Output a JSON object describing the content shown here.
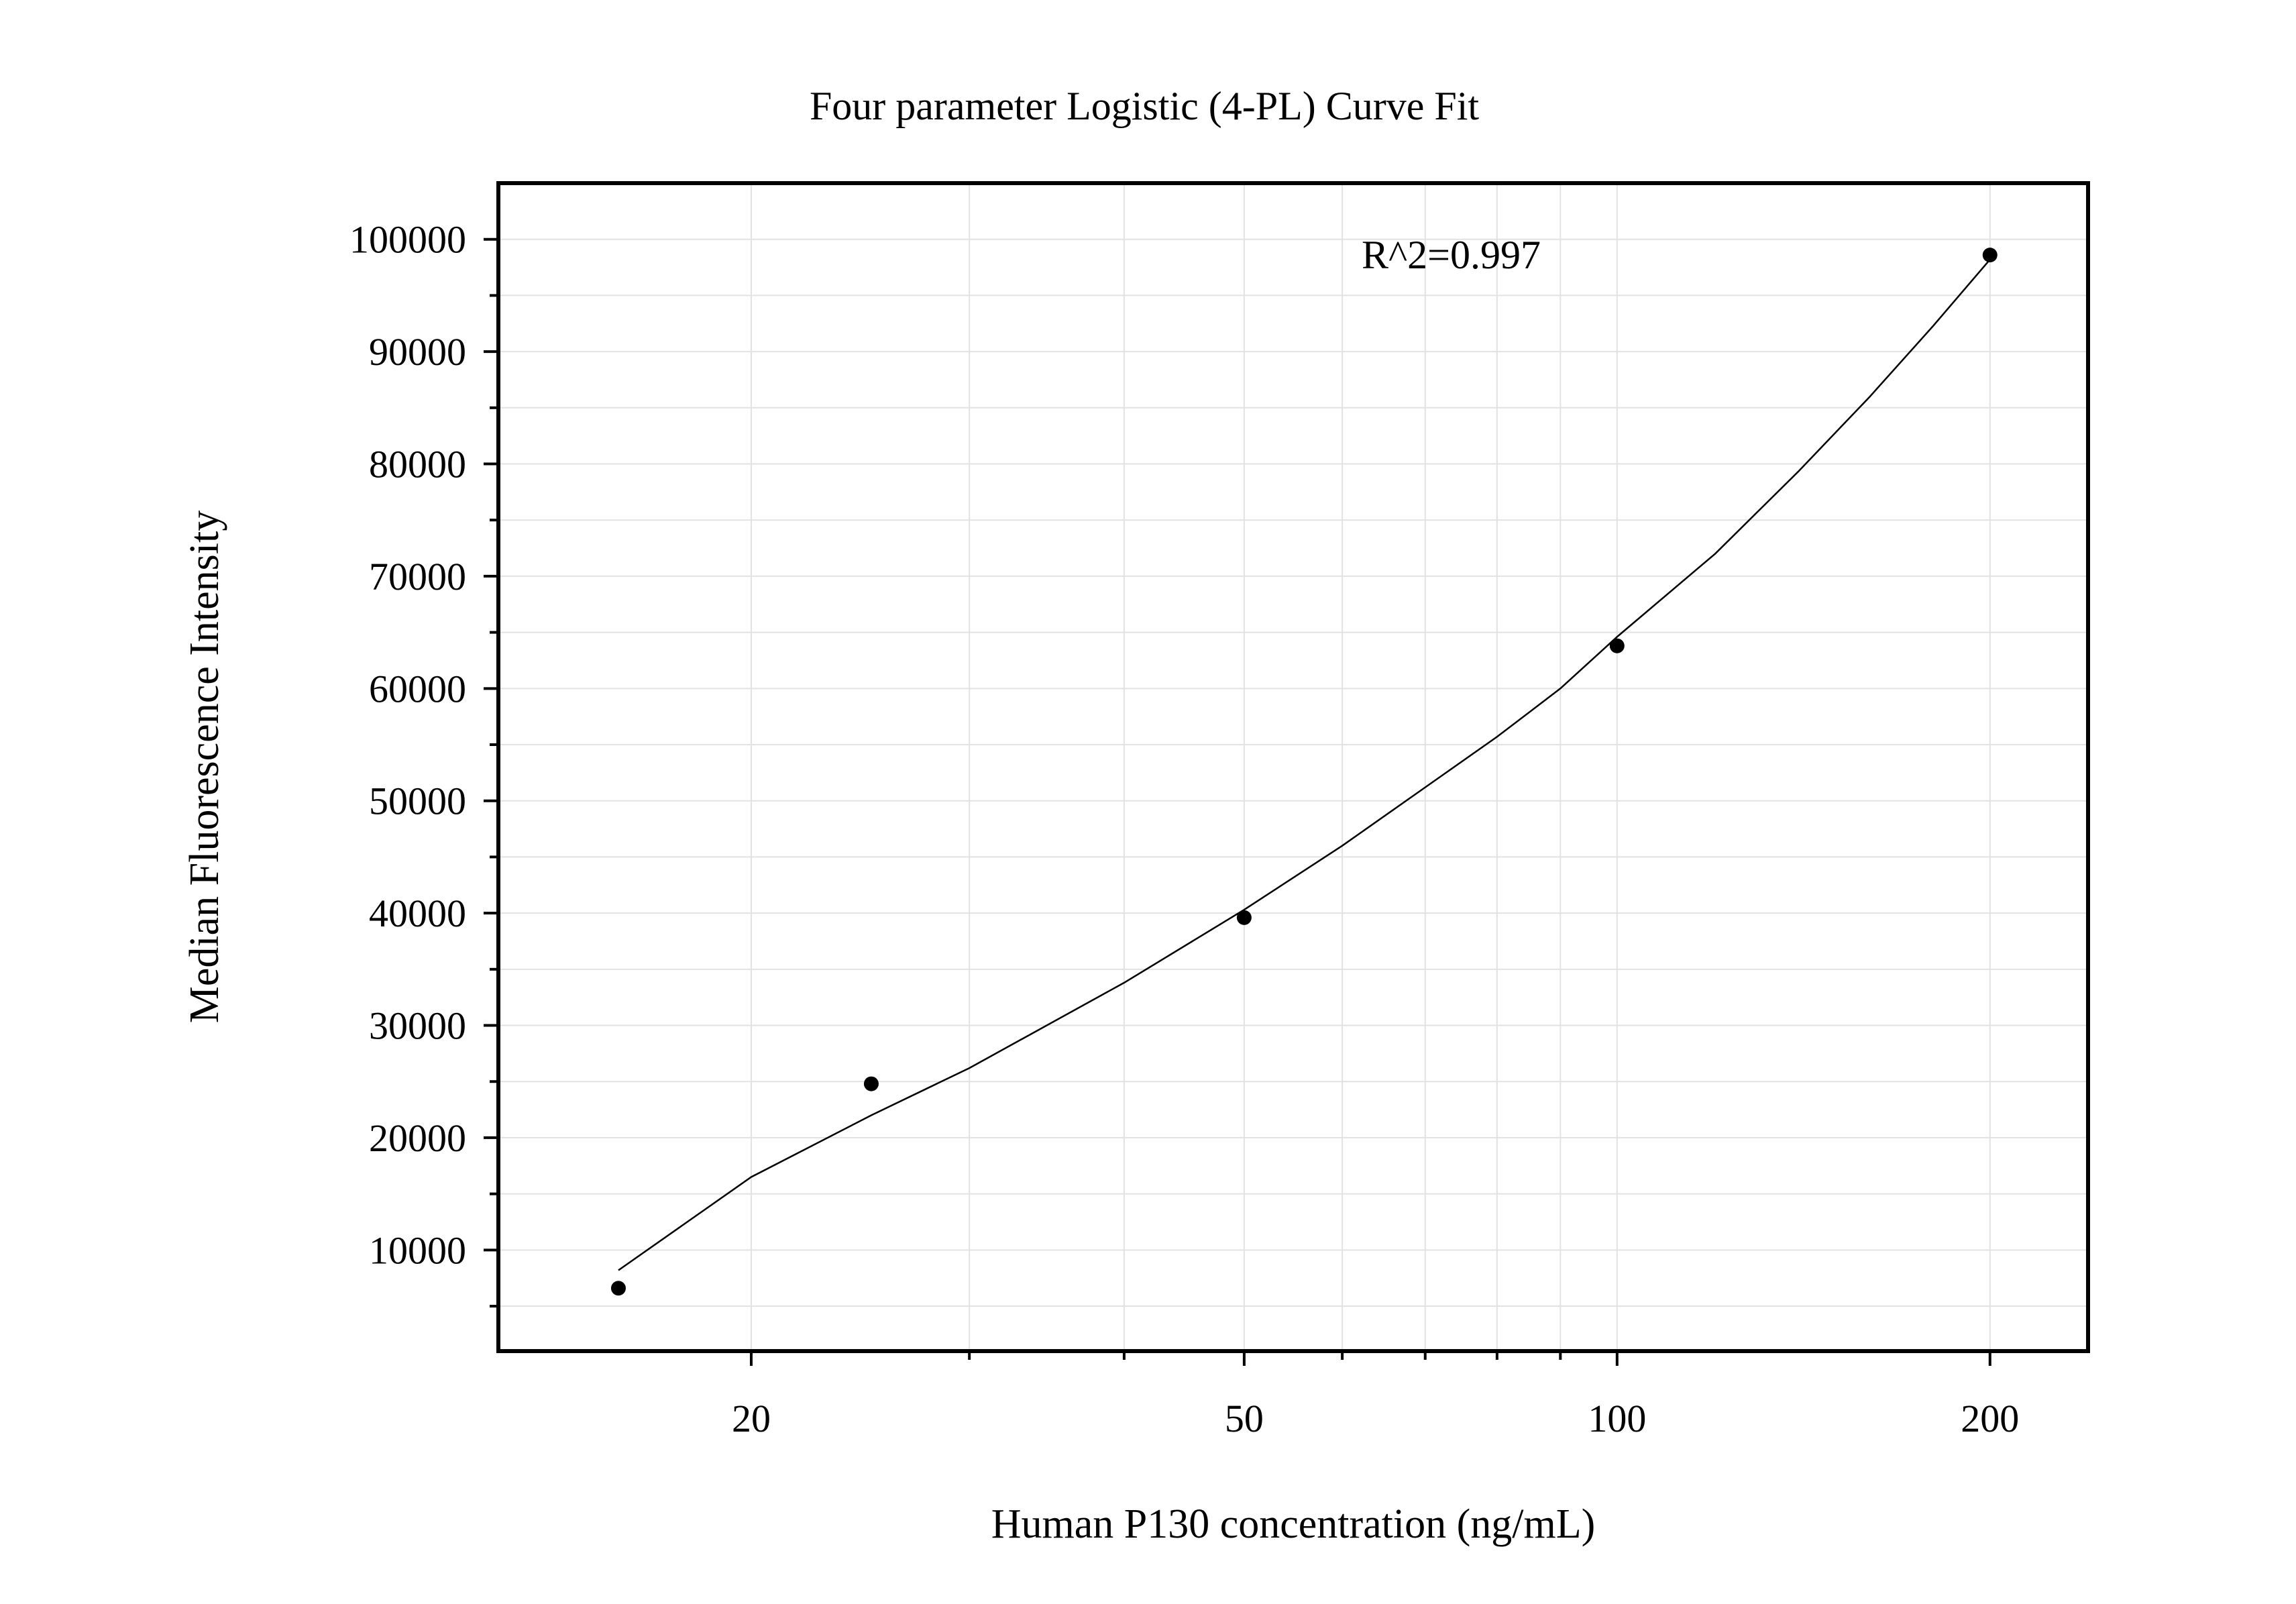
{
  "chart_data": {
    "type": "scatter",
    "title": "Four parameter Logistic (4-PL) Curve Fit",
    "xlabel": "Human P130 concentration (ng/mL)",
    "ylabel": "Median Fluorescence Intensity",
    "x_scale": "log",
    "xlim": [
      12.5,
      240
    ],
    "ylim": [
      1000,
      105000
    ],
    "x_ticks": [
      20,
      50,
      100,
      200
    ],
    "x_tick_labels": [
      "20",
      "50",
      "100",
      "200"
    ],
    "x_minor_ticks": [
      30,
      40,
      60,
      70,
      80,
      90
    ],
    "y_ticks": [
      10000,
      20000,
      30000,
      40000,
      50000,
      60000,
      70000,
      80000,
      90000,
      100000
    ],
    "y_tick_labels": [
      "10000",
      "20000",
      "30000",
      "40000",
      "50000",
      "60000",
      "70000",
      "80000",
      "90000",
      "100000"
    ],
    "y_minor_ticks": [
      5000,
      15000,
      25000,
      35000,
      45000,
      55000,
      65000,
      75000,
      85000,
      95000
    ],
    "grid": true,
    "points": [
      {
        "x": 15.625,
        "y": 6600
      },
      {
        "x": 25,
        "y": 24800
      },
      {
        "x": 50,
        "y": 39600
      },
      {
        "x": 100,
        "y": 63800
      },
      {
        "x": 200,
        "y": 98600
      }
    ],
    "fit_curve": [
      {
        "x": 15.625,
        "y": 8200
      },
      {
        "x": 20,
        "y": 16500
      },
      {
        "x": 25,
        "y": 22000
      },
      {
        "x": 30,
        "y": 26200
      },
      {
        "x": 40,
        "y": 33800
      },
      {
        "x": 50,
        "y": 40300
      },
      {
        "x": 60,
        "y": 46000
      },
      {
        "x": 70,
        "y": 51200
      },
      {
        "x": 80,
        "y": 55700
      },
      {
        "x": 90,
        "y": 60000
      },
      {
        "x": 100,
        "y": 64600
      },
      {
        "x": 120,
        "y": 72000
      },
      {
        "x": 140,
        "y": 79300
      },
      {
        "x": 160,
        "y": 86000
      },
      {
        "x": 180,
        "y": 92300
      },
      {
        "x": 200,
        "y": 98200
      }
    ],
    "annotation": "R^2=0.997"
  }
}
